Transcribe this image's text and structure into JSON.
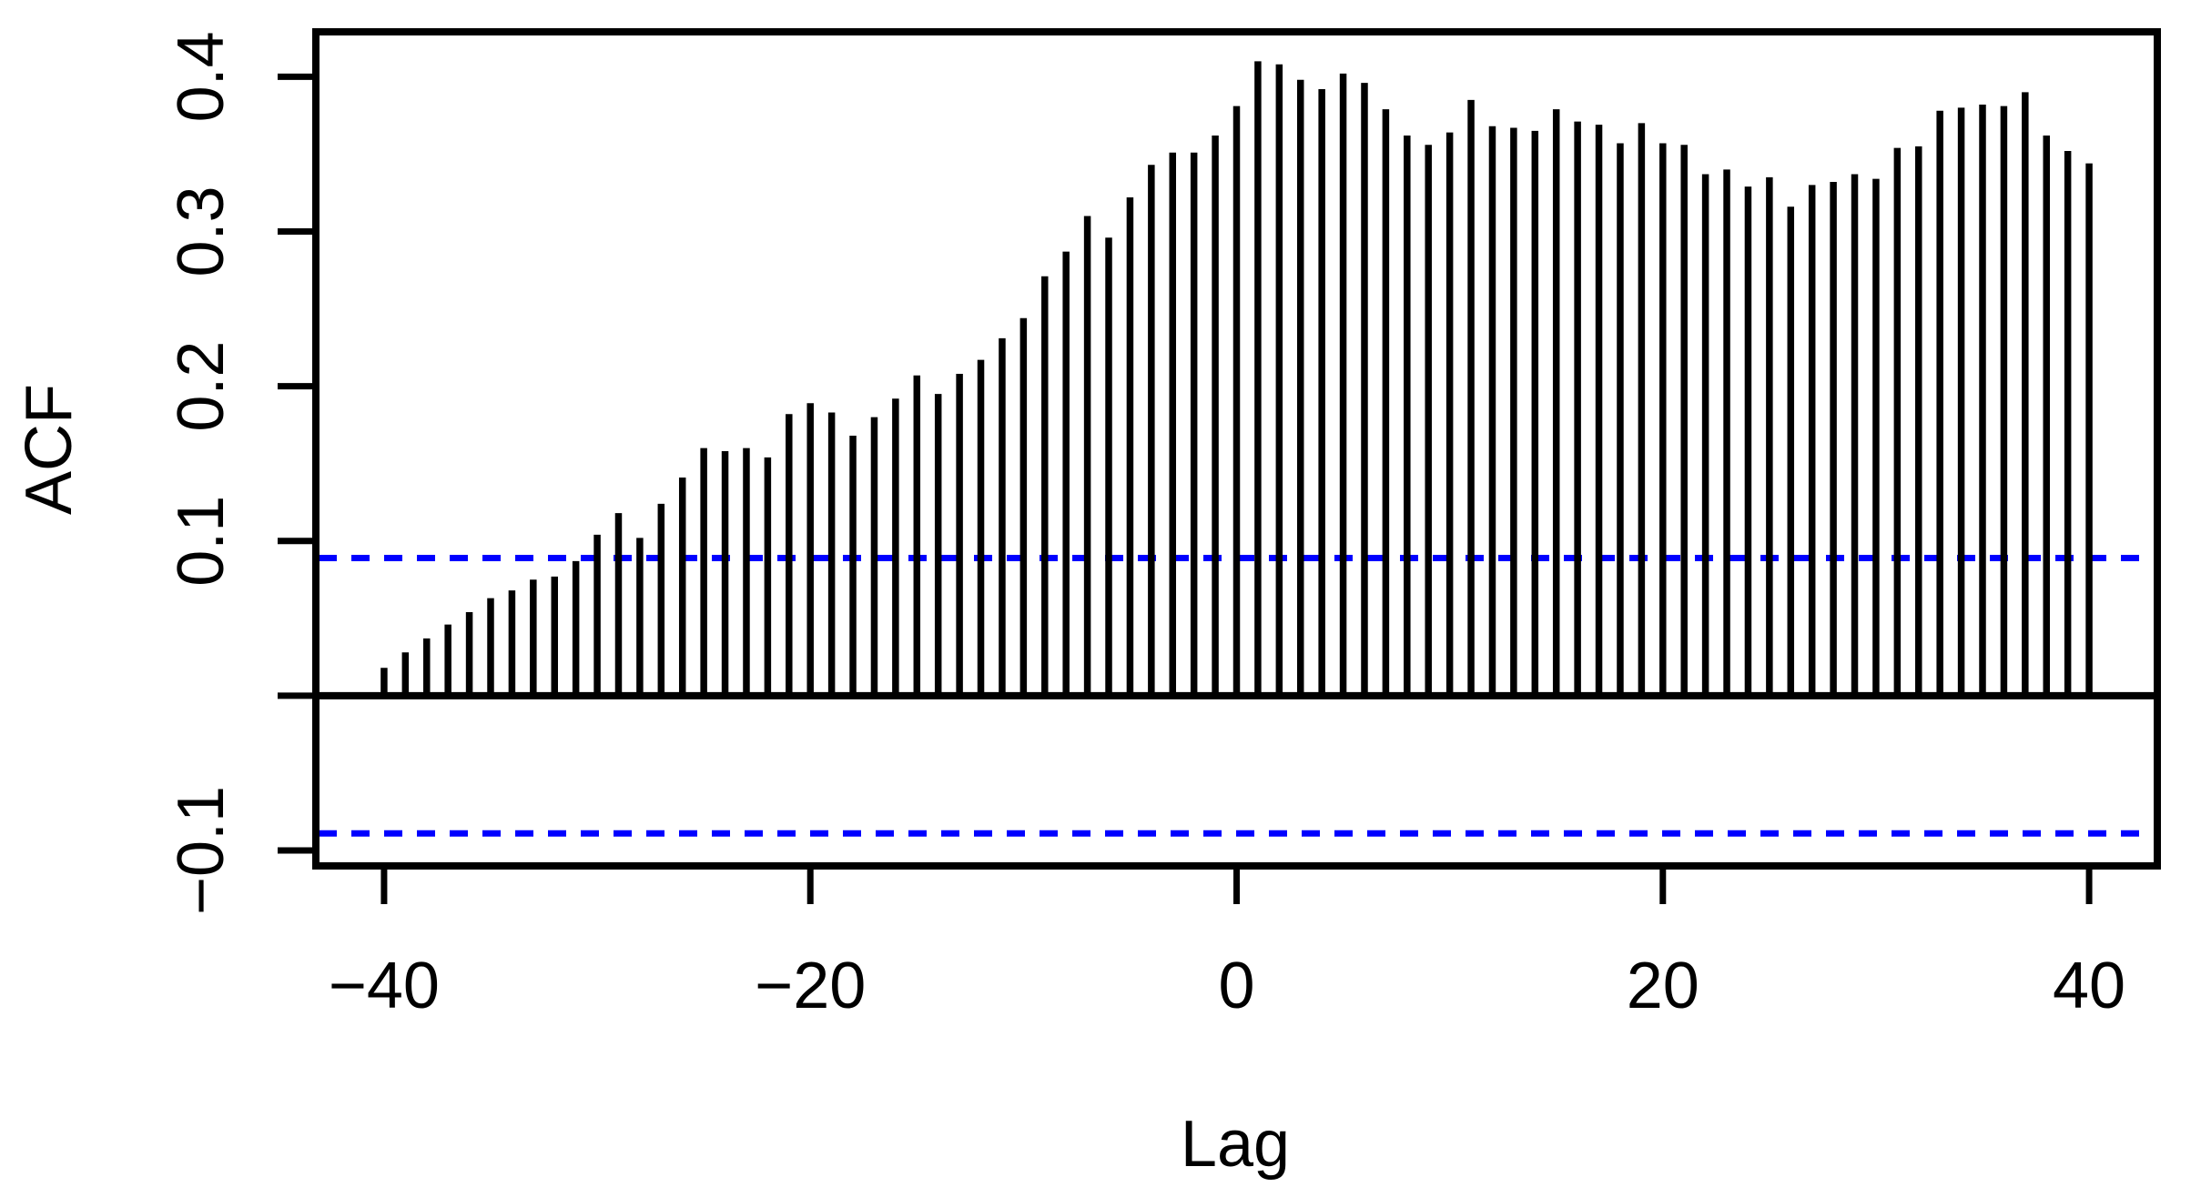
{
  "chart_data": {
    "type": "bar",
    "subtype": "cross-correlation-spikes",
    "title": "",
    "xlabel": "Lag",
    "ylabel": "ACF",
    "x": [
      -40,
      -39,
      -38,
      -37,
      -36,
      -35,
      -34,
      -33,
      -32,
      -31,
      -30,
      -29,
      -28,
      -27,
      -26,
      -25,
      -24,
      -23,
      -22,
      -21,
      -20,
      -19,
      -18,
      -17,
      -16,
      -15,
      -14,
      -13,
      -12,
      -11,
      -10,
      -9,
      -8,
      -7,
      -6,
      -5,
      -4,
      -3,
      -2,
      -1,
      0,
      1,
      2,
      3,
      4,
      5,
      6,
      7,
      8,
      9,
      10,
      11,
      12,
      13,
      14,
      15,
      16,
      17,
      18,
      19,
      20,
      21,
      22,
      23,
      24,
      25,
      26,
      27,
      28,
      29,
      30,
      31,
      32,
      33,
      34,
      35,
      36,
      37,
      38,
      39,
      40
    ],
    "values": [
      0.018,
      0.028,
      0.037,
      0.046,
      0.054,
      0.063,
      0.068,
      0.075,
      0.077,
      0.087,
      0.104,
      0.118,
      0.102,
      0.124,
      0.141,
      0.16,
      0.158,
      0.16,
      0.154,
      0.182,
      0.189,
      0.183,
      0.168,
      0.18,
      0.192,
      0.207,
      0.195,
      0.208,
      0.217,
      0.231,
      0.244,
      0.271,
      0.287,
      0.31,
      0.296,
      0.322,
      0.343,
      0.351,
      0.351,
      0.362,
      0.381,
      0.41,
      0.408,
      0.398,
      0.392,
      0.402,
      0.396,
      0.379,
      0.362,
      0.356,
      0.364,
      0.385,
      0.368,
      0.367,
      0.365,
      0.379,
      0.371,
      0.369,
      0.357,
      0.37,
      0.357,
      0.356,
      0.337,
      0.34,
      0.329,
      0.335,
      0.316,
      0.33,
      0.332,
      0.337,
      0.334,
      0.354,
      0.355,
      0.378,
      0.38,
      0.382,
      0.381,
      0.39,
      0.362,
      0.352,
      0.344
    ],
    "x_ticks": [
      {
        "value": -40,
        "label": "−40"
      },
      {
        "value": -20,
        "label": "−20"
      },
      {
        "value": 0,
        "label": "0"
      },
      {
        "value": 20,
        "label": "20"
      },
      {
        "value": 40,
        "label": "40"
      }
    ],
    "y_ticks": [
      {
        "value": 0.4,
        "label": "0.4"
      },
      {
        "value": 0.3,
        "label": "0.3"
      },
      {
        "value": 0.2,
        "label": "0.2"
      },
      {
        "value": 0.1,
        "label": "0.1"
      },
      {
        "value": 0.0,
        "label": ""
      },
      {
        "value": -0.1,
        "label": "−0.1"
      }
    ],
    "xlim": [
      -43.2,
      43.2
    ],
    "ylim": [
      -0.11,
      0.429
    ],
    "confidence_upper": 0.089,
    "confidence_lower": -0.089,
    "zero_line": 0,
    "grid": false,
    "legend_position": "none",
    "colors": {
      "spike": "#000000",
      "confidence_line": "#0000ff",
      "axis": "#000000",
      "background": "#ffffff"
    }
  }
}
